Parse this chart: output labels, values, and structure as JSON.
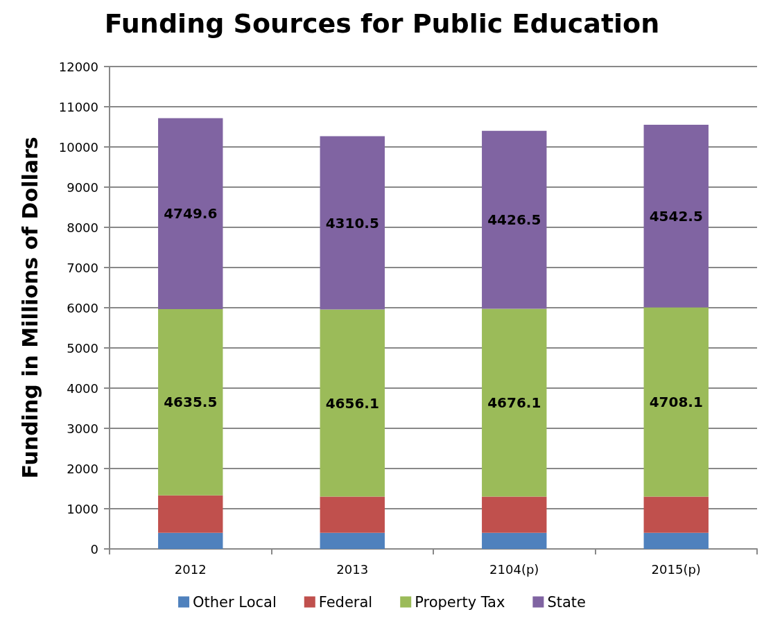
{
  "chart_data": {
    "type": "bar",
    "title": "Funding Sources for Public Education",
    "ylabel": "Funding in Millions of Dollars",
    "categories": [
      "2012",
      "2013",
      "2104(p)",
      "2015(p)"
    ],
    "stacked": true,
    "ylim": [
      0,
      12000
    ],
    "yticks": [
      0,
      1000,
      2000,
      3000,
      4000,
      5000,
      6000,
      7000,
      8000,
      9000,
      10000,
      11000,
      12000
    ],
    "grid": "y",
    "legend": "bottom",
    "series": [
      {
        "name": "Other Local",
        "color": "#4f81bd",
        "values": [
          400,
          400,
          400,
          400
        ]
      },
      {
        "name": "Federal",
        "color": "#c0504d",
        "values": [
          930,
          900,
          900,
          900
        ]
      },
      {
        "name": "Property Tax",
        "color": "#9bbb59",
        "values": [
          4635.5,
          4656.1,
          4676.1,
          4708.1
        ],
        "value_labels": [
          "4635.5",
          "4656.1",
          "4676.1",
          "4708.1"
        ]
      },
      {
        "name": "State",
        "color": "#8064a2",
        "values": [
          4749.6,
          4310.5,
          4426.5,
          4542.5
        ],
        "value_labels": [
          "4749.6",
          "4310.5",
          "4426.5",
          "4542.5"
        ]
      }
    ]
  }
}
